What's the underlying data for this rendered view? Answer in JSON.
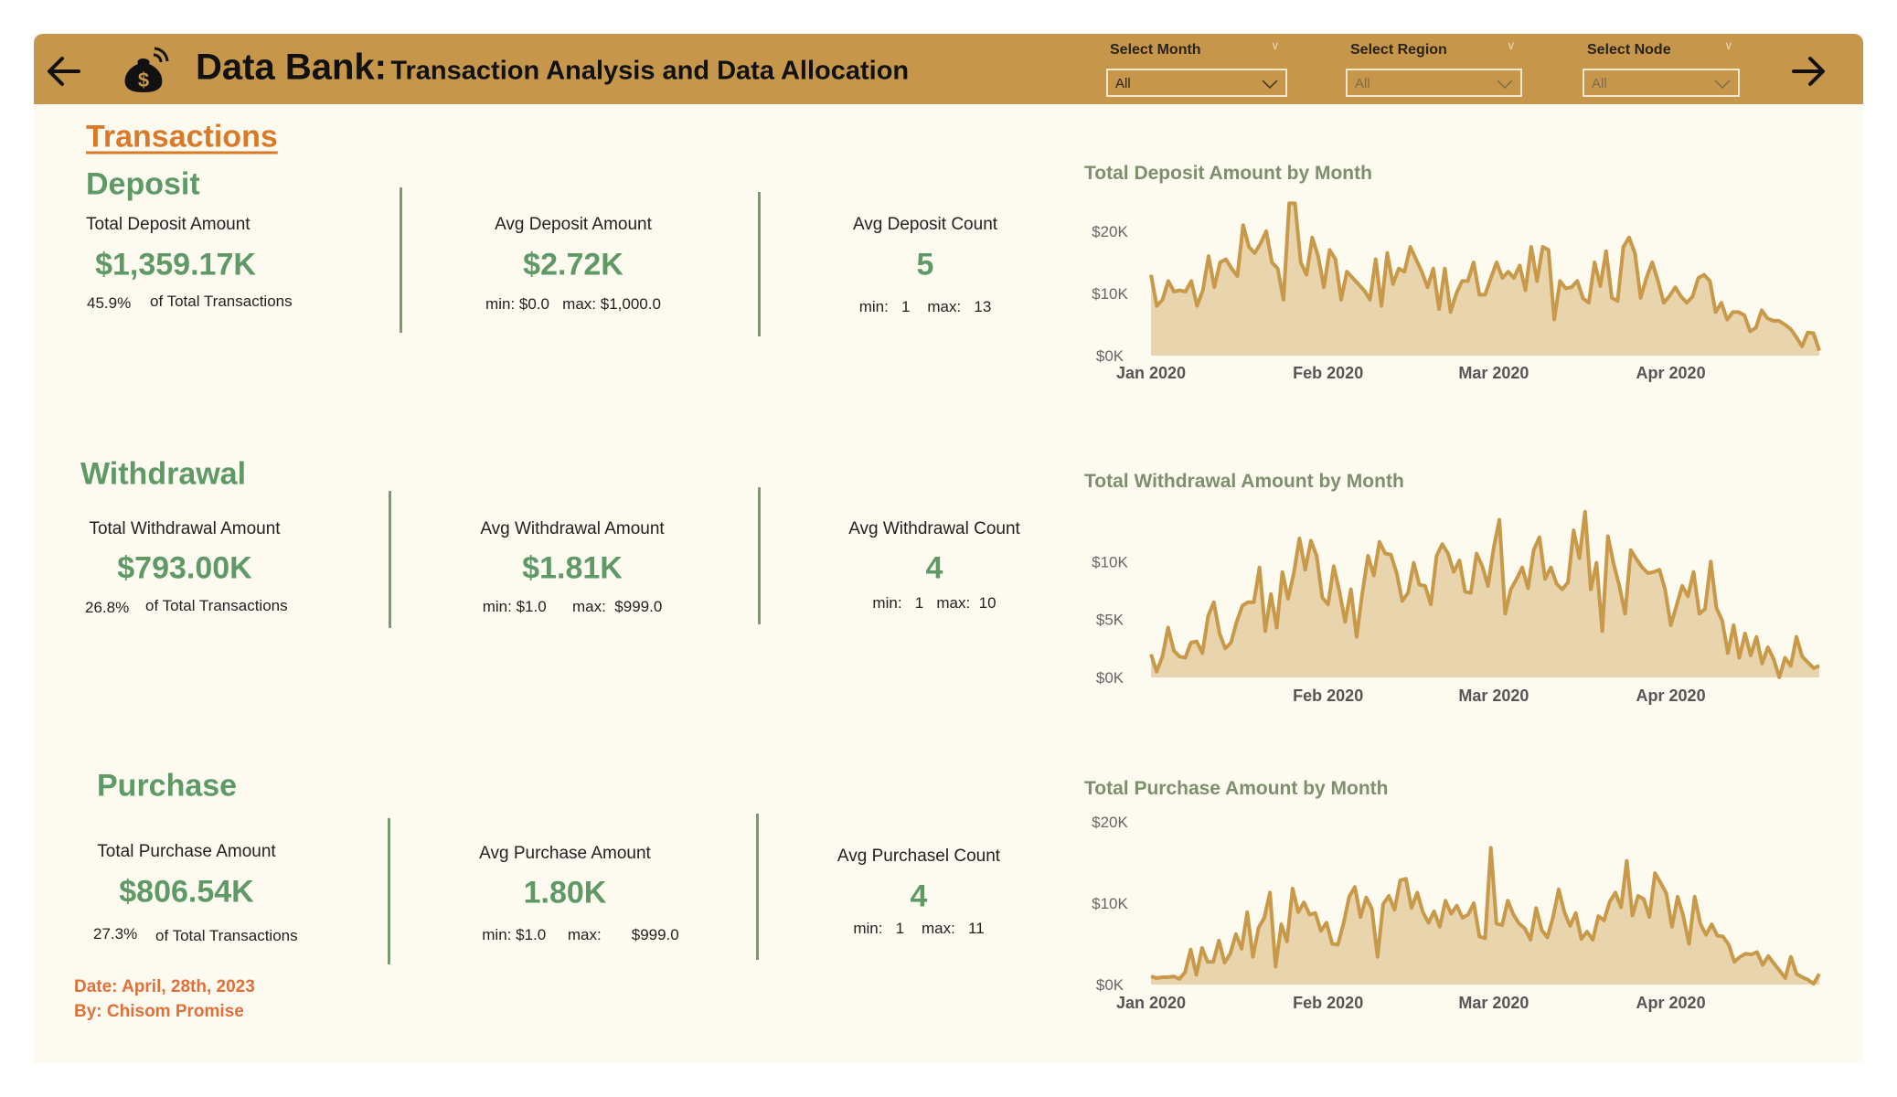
{
  "header": {
    "title_main": "Data Bank:",
    "title_sub": "Transaction Analysis and Data Allocation",
    "filters": [
      {
        "label": "Select Month",
        "value": "All"
      },
      {
        "label": "Select Region",
        "value": "All"
      },
      {
        "label": "Select Node",
        "value": "All"
      }
    ]
  },
  "page_heading": "Transactions",
  "sections": {
    "deposit": {
      "title": "Deposit",
      "total_label": "Total Deposit Amount",
      "total_value": "$1,359.17K",
      "pct": "45.9%",
      "pct_label": "of Total Transactions",
      "avg_label": "Avg Deposit Amount",
      "avg_value": "$2.72K",
      "avg_min_label": "min:",
      "avg_min": "$0.0",
      "avg_max_label": "max:",
      "avg_max": "$1,000.0",
      "count_label": "Avg Deposit Count",
      "count_value": "5",
      "count_min_label": "min:",
      "count_min": "1",
      "count_max_label": "max:",
      "count_max": "13"
    },
    "withdrawal": {
      "title": "Withdrawal",
      "total_label": "Total Withdrawal Amount",
      "total_value": "$793.00K",
      "pct": "26.8%",
      "pct_label": "of Total Transactions",
      "avg_label": "Avg Withdrawal Amount",
      "avg_value": "$1.81K",
      "avg_min_label": "min:",
      "avg_min": "$1.0",
      "avg_max_label": "max:",
      "avg_max": "$999.0",
      "count_label": "Avg Withdrawal Count",
      "count_value": "4",
      "count_min_label": "min:",
      "count_min": "1",
      "count_max_label": "max:",
      "count_max": "10"
    },
    "purchase": {
      "title": "Purchase",
      "total_label": "Total Purchase Amount",
      "total_value": "$806.54K",
      "pct": "27.3%",
      "pct_label": "of Total Transactions",
      "avg_label": "Avg Purchase Amount",
      "avg_value": "1.80K",
      "avg_min_label": "min:",
      "avg_min": "$1.0",
      "avg_max_label": "max:",
      "avg_max": "$999.0",
      "count_label": "Avg Purchasel Count",
      "count_value": "4",
      "count_min_label": "min:",
      "count_min": "1",
      "count_max_label": "max:",
      "count_max": "11"
    }
  },
  "footer": {
    "date": "Date: April, 28th, 2023",
    "author": "By: Chisom Promise"
  },
  "colors": {
    "header": "#c6964a",
    "line": "#c9994a",
    "area": "#e8d4ad",
    "accent_green": "#5e9966",
    "accent_orange": "#d97a2b"
  },
  "chart_data": [
    {
      "type": "area",
      "title": "Total Deposit Amount by Month",
      "x_start": "2020-01-01",
      "x_unit": "day",
      "ylim": [
        0,
        25
      ],
      "y_unit": "K USD",
      "y_ticks": [
        {
          "value": 0,
          "label": "$0K"
        },
        {
          "value": 10,
          "label": "$10K"
        },
        {
          "value": 20,
          "label": "$20K"
        }
      ],
      "x_ticks": [
        {
          "day": 0,
          "label": "Jan 2020"
        },
        {
          "day": 31,
          "label": "Feb 2020"
        },
        {
          "day": 60,
          "label": "Mar 2020"
        },
        {
          "day": 91,
          "label": "Apr 2020"
        }
      ],
      "values": [
        13,
        8,
        9,
        12,
        10.3,
        10.5,
        10.3,
        12,
        8,
        10.5,
        16,
        11,
        15,
        15.5,
        14,
        12.8,
        21,
        17.5,
        16.5,
        18,
        20,
        15,
        14,
        9,
        24.5,
        24.5,
        15,
        13,
        19,
        16,
        11,
        17,
        15.5,
        9,
        13.5,
        12.5,
        11.5,
        10.5,
        9,
        15.5,
        8,
        16.5,
        11.5,
        14,
        13.5,
        17.5,
        15.5,
        13.5,
        11,
        14,
        7.5,
        14,
        7,
        10,
        12,
        12,
        15,
        9.8,
        9.8,
        12.5,
        15,
        12.5,
        13.5,
        12.5,
        14.5,
        10.5,
        17.5,
        12,
        17.5,
        17,
        5.8,
        12,
        10.8,
        11,
        12,
        9.2,
        8.5,
        15,
        11.2,
        16.8,
        9.3,
        8.8,
        17.5,
        19,
        16.5,
        9.3,
        12.5,
        15,
        12,
        8.5,
        9.6,
        11,
        9.5,
        8.5,
        9.5,
        12.5,
        13,
        12,
        7,
        8.5,
        5.8,
        7,
        7,
        6.5,
        3.9,
        4.5,
        7.3,
        6,
        5.6,
        5.6,
        5,
        4.3,
        3,
        1.5,
        3.7,
        3.6,
        0.8
      ]
    },
    {
      "type": "area",
      "title": "Total Withdrawal Amount by Month",
      "x_start": "2020-01-01",
      "x_unit": "day",
      "ylim": [
        0,
        15
      ],
      "y_unit": "K USD",
      "y_ticks": [
        {
          "value": 0,
          "label": "$0K"
        },
        {
          "value": 5,
          "label": "$5K"
        },
        {
          "value": 10,
          "label": "$10K"
        }
      ],
      "x_ticks": [
        {
          "day": 31,
          "label": "Feb 2020"
        },
        {
          "day": 60,
          "label": "Mar 2020"
        },
        {
          "day": 91,
          "label": "Apr 2020"
        }
      ],
      "values": [
        2,
        0.5,
        1.8,
        4.3,
        2.3,
        1.8,
        1.7,
        3,
        3.1,
        2.1,
        5.3,
        6.5,
        3.8,
        2.5,
        3,
        4.8,
        6.2,
        6.5,
        6.5,
        9.5,
        4,
        7.2,
        4.3,
        9.1,
        6.8,
        9,
        12,
        9.3,
        11.8,
        10.5,
        6.9,
        6.3,
        9.6,
        7.4,
        4.8,
        7.6,
        3.5,
        7.3,
        10.5,
        8.8,
        11.7,
        10.7,
        10.6,
        9,
        6.6,
        7.3,
        9.9,
        8,
        7.9,
        6.3,
        10.5,
        11.5,
        10.7,
        9.1,
        10.1,
        7.4,
        7.3,
        10.7,
        9.6,
        7.9,
        11.2,
        13.6,
        5.5,
        7.6,
        8.5,
        9.5,
        7.7,
        11,
        12.1,
        8.5,
        9.5,
        8.1,
        7.6,
        8.2,
        12.7,
        10.3,
        14.3,
        7.6,
        9.9,
        4,
        12.2,
        9.8,
        7.9,
        5.5,
        11,
        10.2,
        9.5,
        9,
        9.1,
        9.3,
        7.6,
        4.5,
        6.2,
        7.9,
        7,
        9.1,
        5.5,
        5.9,
        10,
        6,
        4.9,
        2.1,
        4.5,
        1.7,
        3.8,
        1.9,
        3.5,
        1.2,
        2.6,
        1.6,
        0,
        1.7,
        1,
        3.5,
        1.8,
        1.3,
        0.8,
        1
      ]
    },
    {
      "type": "area",
      "title": "Total Purchase Amount by Month",
      "x_start": "2020-01-01",
      "x_unit": "day",
      "ylim": [
        0,
        20
      ],
      "y_unit": "K USD",
      "y_ticks": [
        {
          "value": 0,
          "label": "$0K"
        },
        {
          "value": 10,
          "label": "$10K"
        },
        {
          "value": 20,
          "label": "$20K"
        }
      ],
      "x_ticks": [
        {
          "day": 0,
          "label": "Jan 2020"
        },
        {
          "day": 31,
          "label": "Feb 2020"
        },
        {
          "day": 60,
          "label": "Mar 2020"
        },
        {
          "day": 91,
          "label": "Apr 2020"
        }
      ],
      "values": [
        1,
        0.8,
        0.9,
        0.9,
        1,
        0.7,
        1.5,
        4.3,
        1.2,
        4.5,
        2.8,
        2.8,
        5.4,
        2.7,
        3.8,
        6.2,
        4.4,
        8.9,
        3.4,
        7,
        8.2,
        11.3,
        2.2,
        7.4,
        5.3,
        11.8,
        8.9,
        10.1,
        8.6,
        8.8,
        6.6,
        7.6,
        5,
        4.9,
        7.5,
        10.8,
        12,
        8.3,
        10.7,
        9.3,
        3.4,
        9.9,
        10.9,
        9.2,
        12.8,
        13,
        9.4,
        11.3,
        8.9,
        7.6,
        9,
        7.1,
        10.3,
        8.7,
        9.7,
        8.2,
        8.6,
        10,
        5.9,
        5.7,
        16.8,
        7.5,
        7.3,
        10.3,
        8.6,
        7.5,
        6.9,
        5.5,
        9.4,
        6.7,
        5.8,
        8.3,
        11.7,
        8.9,
        7.2,
        8.8,
        5.6,
        6.5,
        5.5,
        8.4,
        7.9,
        10.2,
        11.3,
        9.5,
        15.2,
        8.5,
        10.9,
        10.5,
        8.3,
        13.7,
        12.5,
        11.2,
        7.1,
        10.8,
        8.4,
        5,
        10.8,
        7.5,
        6.1,
        7.4,
        6,
        5.9,
        4.9,
        2.8,
        3.4,
        3.8,
        3.7,
        4,
        2.4,
        3.5,
        2.6,
        1.7,
        0.8,
        3.4,
        1.3,
        0.9,
        0.6,
        0.1,
        1.3
      ]
    }
  ]
}
